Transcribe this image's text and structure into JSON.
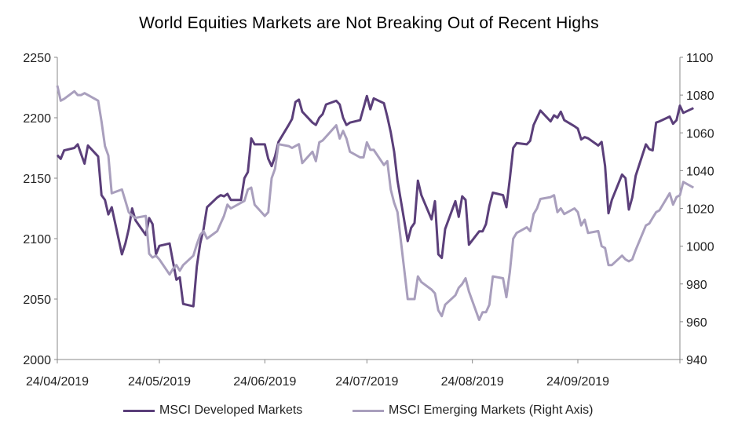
{
  "chart_data": {
    "type": "line",
    "title": "World Equities Markets are Not Breaking Out of Recent Highs",
    "x_tick_labels": [
      "24/04/2019",
      "24/05/2019",
      "24/06/2019",
      "24/07/2019",
      "24/08/2019",
      "24/09/2019"
    ],
    "x_range": [
      "2019-04-24",
      "2019-10-24"
    ],
    "y_left_range": [
      2000,
      2250
    ],
    "y_left_ticks": [
      2000,
      2050,
      2100,
      2150,
      2200,
      2250
    ],
    "y_right_range": [
      940,
      1100
    ],
    "y_right_ticks": [
      940,
      960,
      980,
      1000,
      1020,
      1040,
      1060,
      1080,
      1100
    ],
    "grid": false,
    "legend_position": "bottom",
    "series": [
      {
        "name": "MSCI Developed Markets",
        "axis": "left",
        "color": "#5b3f7a",
        "points": [
          [
            "2019-04-24",
            2169
          ],
          [
            "2019-04-25",
            2166
          ],
          [
            "2019-04-26",
            2173
          ],
          [
            "2019-04-29",
            2175
          ],
          [
            "2019-04-30",
            2178
          ],
          [
            "2019-05-01",
            2170
          ],
          [
            "2019-05-02",
            2162
          ],
          [
            "2019-05-03",
            2177
          ],
          [
            "2019-05-06",
            2168
          ],
          [
            "2019-05-07",
            2136
          ],
          [
            "2019-05-08",
            2132
          ],
          [
            "2019-05-09",
            2120
          ],
          [
            "2019-05-10",
            2126
          ],
          [
            "2019-05-13",
            2087
          ],
          [
            "2019-05-14",
            2096
          ],
          [
            "2019-05-15",
            2108
          ],
          [
            "2019-05-16",
            2125
          ],
          [
            "2019-05-17",
            2115
          ],
          [
            "2019-05-20",
            2103
          ],
          [
            "2019-05-21",
            2117
          ],
          [
            "2019-05-22",
            2112
          ],
          [
            "2019-05-23",
            2087
          ],
          [
            "2019-05-24",
            2094
          ],
          [
            "2019-05-27",
            2096
          ],
          [
            "2019-05-28",
            2081
          ],
          [
            "2019-05-29",
            2066
          ],
          [
            "2019-05-30",
            2068
          ],
          [
            "2019-05-31",
            2046
          ],
          [
            "2019-06-03",
            2044
          ],
          [
            "2019-06-04",
            2077
          ],
          [
            "2019-06-05",
            2096
          ],
          [
            "2019-06-06",
            2108
          ],
          [
            "2019-06-07",
            2126
          ],
          [
            "2019-06-10",
            2134
          ],
          [
            "2019-06-11",
            2136
          ],
          [
            "2019-06-12",
            2135
          ],
          [
            "2019-06-13",
            2137
          ],
          [
            "2019-06-14",
            2132
          ],
          [
            "2019-06-17",
            2132
          ],
          [
            "2019-06-18",
            2150
          ],
          [
            "2019-06-19",
            2155
          ],
          [
            "2019-06-20",
            2183
          ],
          [
            "2019-06-21",
            2178
          ],
          [
            "2019-06-24",
            2178
          ],
          [
            "2019-06-25",
            2166
          ],
          [
            "2019-06-26",
            2160
          ],
          [
            "2019-06-27",
            2168
          ],
          [
            "2019-06-28",
            2180
          ],
          [
            "2019-07-01",
            2194
          ],
          [
            "2019-07-02",
            2199
          ],
          [
            "2019-07-03",
            2213
          ],
          [
            "2019-07-04",
            2215
          ],
          [
            "2019-07-05",
            2205
          ],
          [
            "2019-07-08",
            2196
          ],
          [
            "2019-07-09",
            2194
          ],
          [
            "2019-07-10",
            2200
          ],
          [
            "2019-07-11",
            2203
          ],
          [
            "2019-07-12",
            2211
          ],
          [
            "2019-07-15",
            2214
          ],
          [
            "2019-07-16",
            2211
          ],
          [
            "2019-07-17",
            2200
          ],
          [
            "2019-07-18",
            2194
          ],
          [
            "2019-07-19",
            2196
          ],
          [
            "2019-07-22",
            2198
          ],
          [
            "2019-07-23",
            2208
          ],
          [
            "2019-07-24",
            2218
          ],
          [
            "2019-07-25",
            2207
          ],
          [
            "2019-07-26",
            2216
          ],
          [
            "2019-07-29",
            2212
          ],
          [
            "2019-07-30",
            2201
          ],
          [
            "2019-07-31",
            2188
          ],
          [
            "2019-08-01",
            2172
          ],
          [
            "2019-08-02",
            2148
          ],
          [
            "2019-08-05",
            2098
          ],
          [
            "2019-08-06",
            2109
          ],
          [
            "2019-08-07",
            2113
          ],
          [
            "2019-08-08",
            2148
          ],
          [
            "2019-08-09",
            2136
          ],
          [
            "2019-08-12",
            2116
          ],
          [
            "2019-08-13",
            2131
          ],
          [
            "2019-08-14",
            2087
          ],
          [
            "2019-08-15",
            2084
          ],
          [
            "2019-08-16",
            2108
          ],
          [
            "2019-08-19",
            2131
          ],
          [
            "2019-08-20",
            2118
          ],
          [
            "2019-08-21",
            2135
          ],
          [
            "2019-08-22",
            2132
          ],
          [
            "2019-08-23",
            2095
          ],
          [
            "2019-08-26",
            2106
          ],
          [
            "2019-08-27",
            2106
          ],
          [
            "2019-08-28",
            2112
          ],
          [
            "2019-08-29",
            2127
          ],
          [
            "2019-08-30",
            2138
          ],
          [
            "2019-09-02",
            2136
          ],
          [
            "2019-09-03",
            2126
          ],
          [
            "2019-09-04",
            2149
          ],
          [
            "2019-09-05",
            2175
          ],
          [
            "2019-09-06",
            2179
          ],
          [
            "2019-09-09",
            2178
          ],
          [
            "2019-09-10",
            2181
          ],
          [
            "2019-09-11",
            2194
          ],
          [
            "2019-09-12",
            2200
          ],
          [
            "2019-09-13",
            2206
          ],
          [
            "2019-09-16",
            2197
          ],
          [
            "2019-09-17",
            2202
          ],
          [
            "2019-09-18",
            2200
          ],
          [
            "2019-09-19",
            2205
          ],
          [
            "2019-09-20",
            2198
          ],
          [
            "2019-09-23",
            2193
          ],
          [
            "2019-09-24",
            2191
          ],
          [
            "2019-09-25",
            2182
          ],
          [
            "2019-09-26",
            2184
          ],
          [
            "2019-09-27",
            2183
          ],
          [
            "2019-09-30",
            2177
          ],
          [
            "2019-10-01",
            2180
          ],
          [
            "2019-10-02",
            2160
          ],
          [
            "2019-10-03",
            2121
          ],
          [
            "2019-10-04",
            2132
          ],
          [
            "2019-10-07",
            2153
          ],
          [
            "2019-10-08",
            2150
          ],
          [
            "2019-10-09",
            2124
          ],
          [
            "2019-10-10",
            2134
          ],
          [
            "2019-10-11",
            2152
          ],
          [
            "2019-10-14",
            2178
          ],
          [
            "2019-10-15",
            2174
          ],
          [
            "2019-10-16",
            2173
          ],
          [
            "2019-10-17",
            2196
          ],
          [
            "2019-10-18",
            2197
          ],
          [
            "2019-10-21",
            2201
          ],
          [
            "2019-10-22",
            2195
          ],
          [
            "2019-10-23",
            2198
          ],
          [
            "2019-10-24",
            2210
          ],
          [
            "2019-10-25",
            2204
          ],
          [
            "2019-10-28",
            2208
          ]
        ]
      },
      {
        "name": "MSCI Emerging Markets (Right Axis)",
        "axis": "right",
        "color": "#a99fbd",
        "points": [
          [
            "2019-04-24",
            1085
          ],
          [
            "2019-04-25",
            1077
          ],
          [
            "2019-04-26",
            1078
          ],
          [
            "2019-04-29",
            1082
          ],
          [
            "2019-04-30",
            1080
          ],
          [
            "2019-05-01",
            1080
          ],
          [
            "2019-05-02",
            1081
          ],
          [
            "2019-05-03",
            1080
          ],
          [
            "2019-05-06",
            1077
          ],
          [
            "2019-05-07",
            1066
          ],
          [
            "2019-05-08",
            1053
          ],
          [
            "2019-05-09",
            1048
          ],
          [
            "2019-05-10",
            1028
          ],
          [
            "2019-05-13",
            1030
          ],
          [
            "2019-05-14",
            1024
          ],
          [
            "2019-05-15",
            1018
          ],
          [
            "2019-05-16",
            1016
          ],
          [
            "2019-05-17",
            1015
          ],
          [
            "2019-05-20",
            1016
          ],
          [
            "2019-05-21",
            996
          ],
          [
            "2019-05-22",
            994
          ],
          [
            "2019-05-23",
            995
          ],
          [
            "2019-05-24",
            993
          ],
          [
            "2019-05-27",
            985
          ],
          [
            "2019-05-28",
            988
          ],
          [
            "2019-05-29",
            990
          ],
          [
            "2019-05-30",
            987
          ],
          [
            "2019-05-31",
            990
          ],
          [
            "2019-06-03",
            995
          ],
          [
            "2019-06-04",
            1001
          ],
          [
            "2019-06-05",
            1006
          ],
          [
            "2019-06-06",
            1008
          ],
          [
            "2019-06-07",
            1004
          ],
          [
            "2019-06-10",
            1008
          ],
          [
            "2019-06-11",
            1012
          ],
          [
            "2019-06-12",
            1016
          ],
          [
            "2019-06-13",
            1022
          ],
          [
            "2019-06-14",
            1020
          ],
          [
            "2019-06-17",
            1023
          ],
          [
            "2019-06-18",
            1024
          ],
          [
            "2019-06-19",
            1030
          ],
          [
            "2019-06-20",
            1031
          ],
          [
            "2019-06-21",
            1022
          ],
          [
            "2019-06-24",
            1016
          ],
          [
            "2019-06-25",
            1018
          ],
          [
            "2019-06-26",
            1036
          ],
          [
            "2019-06-27",
            1041
          ],
          [
            "2019-06-28",
            1054
          ],
          [
            "2019-07-01",
            1053
          ],
          [
            "2019-07-02",
            1052
          ],
          [
            "2019-07-03",
            1053
          ],
          [
            "2019-07-04",
            1054
          ],
          [
            "2019-07-05",
            1044
          ],
          [
            "2019-07-08",
            1050
          ],
          [
            "2019-07-09",
            1045
          ],
          [
            "2019-07-10",
            1055
          ],
          [
            "2019-07-11",
            1056
          ],
          [
            "2019-07-12",
            1058
          ],
          [
            "2019-07-15",
            1064
          ],
          [
            "2019-07-16",
            1057
          ],
          [
            "2019-07-17",
            1061
          ],
          [
            "2019-07-18",
            1057
          ],
          [
            "2019-07-19",
            1050
          ],
          [
            "2019-07-22",
            1047
          ],
          [
            "2019-07-23",
            1047
          ],
          [
            "2019-07-24",
            1055
          ],
          [
            "2019-07-25",
            1051
          ],
          [
            "2019-07-26",
            1051
          ],
          [
            "2019-07-29",
            1043
          ],
          [
            "2019-07-30",
            1045
          ],
          [
            "2019-07-31",
            1030
          ],
          [
            "2019-08-01",
            1023
          ],
          [
            "2019-08-02",
            1018
          ],
          [
            "2019-08-05",
            972
          ],
          [
            "2019-08-06",
            972
          ],
          [
            "2019-08-07",
            972
          ],
          [
            "2019-08-08",
            984
          ],
          [
            "2019-08-09",
            981
          ],
          [
            "2019-08-12",
            977
          ],
          [
            "2019-08-13",
            975
          ],
          [
            "2019-08-14",
            966
          ],
          [
            "2019-08-15",
            963
          ],
          [
            "2019-08-16",
            969
          ],
          [
            "2019-08-19",
            974
          ],
          [
            "2019-08-20",
            978
          ],
          [
            "2019-08-21",
            980
          ],
          [
            "2019-08-22",
            983
          ],
          [
            "2019-08-23",
            976
          ],
          [
            "2019-08-26",
            961
          ],
          [
            "2019-08-27",
            965
          ],
          [
            "2019-08-28",
            965
          ],
          [
            "2019-08-29",
            969
          ],
          [
            "2019-08-30",
            984
          ],
          [
            "2019-09-02",
            983
          ],
          [
            "2019-09-03",
            973
          ],
          [
            "2019-09-04",
            986
          ],
          [
            "2019-09-05",
            1004
          ],
          [
            "2019-09-06",
            1007
          ],
          [
            "2019-09-09",
            1010
          ],
          [
            "2019-09-10",
            1008
          ],
          [
            "2019-09-11",
            1017
          ],
          [
            "2019-09-12",
            1020
          ],
          [
            "2019-09-13",
            1025
          ],
          [
            "2019-09-16",
            1026
          ],
          [
            "2019-09-17",
            1027
          ],
          [
            "2019-09-18",
            1018
          ],
          [
            "2019-09-19",
            1020
          ],
          [
            "2019-09-20",
            1017
          ],
          [
            "2019-09-23",
            1020
          ],
          [
            "2019-09-24",
            1018
          ],
          [
            "2019-09-25",
            1011
          ],
          [
            "2019-09-26",
            1014
          ],
          [
            "2019-09-27",
            1007
          ],
          [
            "2019-09-30",
            1008
          ],
          [
            "2019-10-01",
            1000
          ],
          [
            "2019-10-02",
            999
          ],
          [
            "2019-10-03",
            990
          ],
          [
            "2019-10-04",
            990
          ],
          [
            "2019-10-07",
            995
          ],
          [
            "2019-10-08",
            993
          ],
          [
            "2019-10-09",
            992
          ],
          [
            "2019-10-10",
            993
          ],
          [
            "2019-10-11",
            998
          ],
          [
            "2019-10-14",
            1011
          ],
          [
            "2019-10-15",
            1012
          ],
          [
            "2019-10-16",
            1015
          ],
          [
            "2019-10-17",
            1018
          ],
          [
            "2019-10-18",
            1019
          ],
          [
            "2019-10-21",
            1028
          ],
          [
            "2019-10-22",
            1022
          ],
          [
            "2019-10-23",
            1026
          ],
          [
            "2019-10-24",
            1027
          ],
          [
            "2019-10-25",
            1034
          ],
          [
            "2019-10-28",
            1031
          ]
        ]
      }
    ]
  }
}
